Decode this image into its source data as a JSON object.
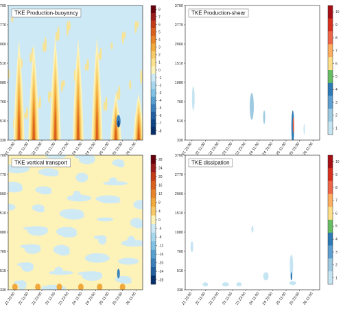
{
  "chart_data": [
    {
      "type": "heatmap",
      "title": "TKE Production-buoyancy",
      "y_ticks": [
        "330",
        "510",
        "760",
        "1080",
        "1510",
        "2060",
        "2770",
        "3700"
      ],
      "x_ticks": [
        "21 23:00",
        "22 11:00",
        "22 23:00",
        "23 11:00",
        "23 23:00",
        "24 11:00",
        "24 23:00",
        "25 11:00",
        "25 23:00",
        "26 11:00"
      ],
      "colorbar_labels": [
        "8",
        "7",
        "6",
        "5",
        "4",
        "3",
        "2",
        "1",
        "0",
        "-1",
        "-2",
        "-3",
        "-4",
        "-5",
        "-6",
        "-7",
        "-8"
      ],
      "colorbar_colors": [
        "#67000d",
        "#9b1c1c",
        "#c43c16",
        "#d9601c",
        "#e8852a",
        "#f2a93b",
        "#f7c967",
        "#fbe28c",
        "#fdf2b8",
        "#cde9f6",
        "#a7d7ee",
        "#7fc2e3",
        "#569fce",
        "#3a80bb",
        "#22609f",
        "#0f4584",
        "#08306b"
      ],
      "background": "#cde9f6",
      "plumes": [
        {
          "x": 0.08,
          "y": 0.0,
          "h": 0.75
        },
        {
          "x": 0.19,
          "y": 0.1,
          "h": 0.72
        },
        {
          "x": 0.35,
          "y": 0.2,
          "h": 0.78
        },
        {
          "x": 0.52,
          "y": 0.1,
          "h": 0.76
        },
        {
          "x": 0.66,
          "y": 0.05,
          "h": 0.77
        },
        {
          "x": 0.8,
          "y": 0.12,
          "h": 0.35
        },
        {
          "x": 0.97,
          "y": 0.08,
          "h": 0.35
        }
      ]
    },
    {
      "type": "heatmap",
      "title": "TKE Production-shear",
      "y_ticks": [
        "330",
        "510",
        "760",
        "1080",
        "1510",
        "2060",
        "2770",
        "3700"
      ],
      "x_ticks": [
        "21 23:00",
        "22 11:00",
        "22 23:00",
        "23 11:00",
        "23 23:00",
        "24 11:00",
        "24 23:00",
        "25 11:00",
        "25 23:00",
        "26 11:00"
      ],
      "colorbar_labels": [
        "10",
        "9",
        "8",
        "7",
        "6",
        "5",
        "4",
        "3",
        "2",
        "1"
      ],
      "colorbar_colors": [
        "#a50f15",
        "#d7301f",
        "#ef6548",
        "#fdae61",
        "#fee08b",
        "#66bd63",
        "#2c7bb6",
        "#5e9fd1",
        "#9ecae1",
        "#c6e5f3"
      ],
      "background": "#ffffff",
      "patches": [
        {
          "x": 0.05,
          "y": 0.6,
          "w": 0.02,
          "h": 0.18,
          "value": 1
        },
        {
          "x": 0.48,
          "y": 0.65,
          "w": 0.03,
          "h": 0.2,
          "value": 2
        },
        {
          "x": 0.58,
          "y": 0.78,
          "w": 0.015,
          "h": 0.1,
          "value": 2
        },
        {
          "x": 0.79,
          "y": 0.78,
          "w": 0.02,
          "h": 0.25,
          "value": 4
        },
        {
          "x": 0.8,
          "y": 0.83,
          "w": 0.01,
          "h": 0.12,
          "value": 8
        },
        {
          "x": 0.88,
          "y": 0.88,
          "w": 0.01,
          "h": 0.08,
          "value": 1
        }
      ]
    },
    {
      "type": "heatmap",
      "title": "TKE vertical transport",
      "y_ticks": [
        "330",
        "510",
        "760",
        "1080",
        "1510",
        "2060",
        "2770",
        "3700"
      ],
      "x_ticks": [
        "21 23:00",
        "22 11:00",
        "22 23:00",
        "23 11:00",
        "23 23:00",
        "24 11:00",
        "24 23:00",
        "25 11:00",
        "25 23:00",
        "26 11:00"
      ],
      "colorbar_labels": [
        "28",
        "24",
        "20",
        "16",
        "12",
        "8",
        "4",
        "0",
        "-4",
        "-8",
        "-12",
        "-16",
        "-20",
        "-24",
        "-28"
      ],
      "colorbar_colors": [
        "#67000d",
        "#9b1c1c",
        "#c43c16",
        "#d9601c",
        "#e8852a",
        "#f2a93b",
        "#f7c967",
        "#fdf2b8",
        "#cde9f6",
        "#a7d7ee",
        "#7fc2e3",
        "#569fce",
        "#3a80bb",
        "#22609f",
        "#08306b"
      ],
      "background": "#fdf2b8"
    },
    {
      "type": "heatmap",
      "title": "TKE dissipation",
      "y_ticks": [
        "330",
        "510",
        "760",
        "1080",
        "1510",
        "2060",
        "2770",
        "3700"
      ],
      "x_ticks": [
        "21 23:00",
        "22 11:00",
        "22 23:00",
        "23 11:00",
        "23 23:00",
        "24 11:00",
        "24 23:00",
        "25 11:00",
        "25 23:00",
        "26 11:00"
      ],
      "colorbar_labels": [
        "10",
        "9",
        "8",
        "7",
        "6",
        "5",
        "4",
        "3",
        "2",
        "1"
      ],
      "colorbar_colors": [
        "#a50f15",
        "#d7301f",
        "#ef6548",
        "#fdae61",
        "#fee08b",
        "#66bd63",
        "#2c7bb6",
        "#5e9fd1",
        "#9ecae1",
        "#c6e5f3"
      ],
      "background": "#ffffff"
    }
  ]
}
